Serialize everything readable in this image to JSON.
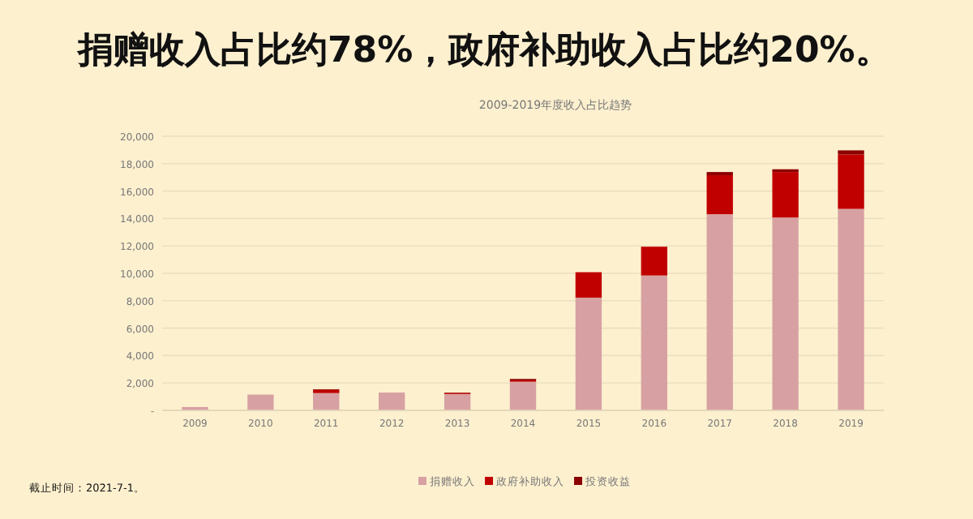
{
  "chart_data": {
    "type": "bar",
    "stacked": true,
    "title": "捐赠收入占比约78%，政府补助收入占比约20%。",
    "subtitle": "2009-2019年度收入占比趋势",
    "categories": [
      "2009",
      "2010",
      "2011",
      "2012",
      "2013",
      "2014",
      "2015",
      "2016",
      "2017",
      "2018",
      "2019"
    ],
    "series": [
      {
        "name": "捐赠收入",
        "color": "#d7a1a3",
        "values": [
          240,
          1150,
          1260,
          1300,
          1190,
          2090,
          8220,
          9840,
          14310,
          14070,
          14700
        ]
      },
      {
        "name": "政府补助收入",
        "color": "#c00000",
        "values": [
          0,
          0,
          230,
          0,
          80,
          100,
          1860,
          2100,
          2850,
          3320,
          3970
        ]
      },
      {
        "name": "投资收益",
        "color": "#8b0000",
        "values": [
          0,
          0,
          50,
          0,
          30,
          100,
          0,
          0,
          230,
          200,
          300
        ]
      }
    ],
    "ylim": [
      0,
      20000
    ],
    "yticks": [
      {
        "value": 0,
        "label": "-"
      },
      {
        "value": 2000,
        "label": "2,000"
      },
      {
        "value": 4000,
        "label": "4,000"
      },
      {
        "value": 6000,
        "label": "6,000"
      },
      {
        "value": 8000,
        "label": "8,000"
      },
      {
        "value": 10000,
        "label": "10,000"
      },
      {
        "value": 12000,
        "label": "12,000"
      },
      {
        "value": 14000,
        "label": "14,000"
      },
      {
        "value": 16000,
        "label": "16,000"
      },
      {
        "value": 18000,
        "label": "18,000"
      },
      {
        "value": 20000,
        "label": "20,000"
      }
    ],
    "grid": "y",
    "legend": "bottom",
    "annotations": [
      "截止时间：2021-7-1。"
    ]
  }
}
